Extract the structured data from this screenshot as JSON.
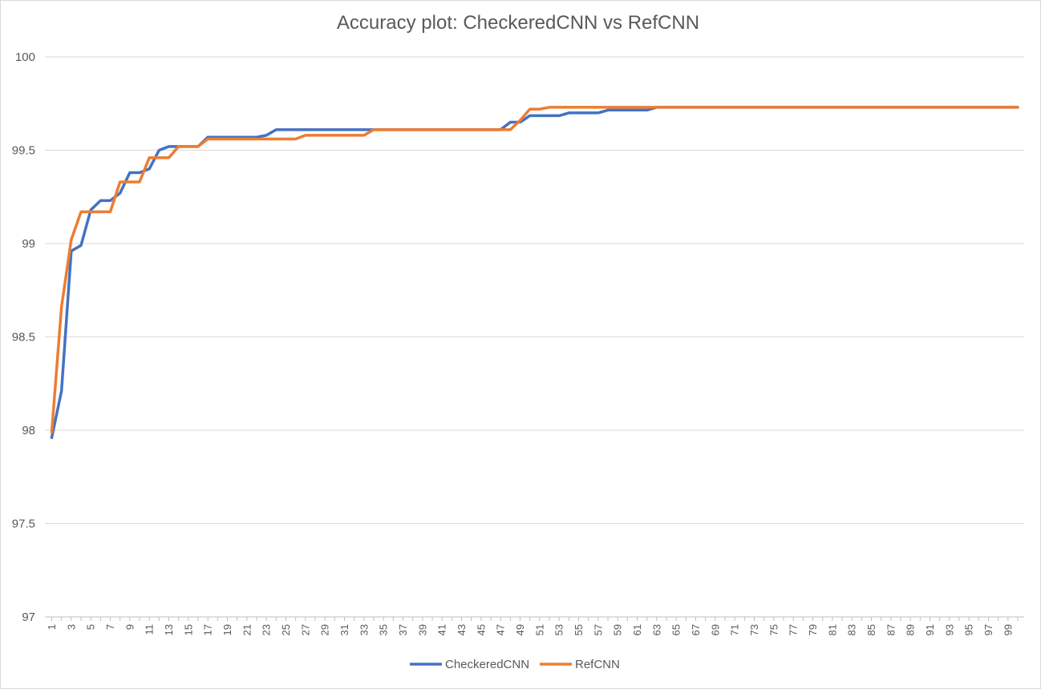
{
  "chart_data": {
    "type": "line",
    "title": "Accuracy plot: CheckeredCNN vs RefCNN",
    "xlabel": "",
    "ylabel": "",
    "x": [
      1,
      2,
      3,
      4,
      5,
      6,
      7,
      8,
      9,
      10,
      11,
      12,
      13,
      14,
      15,
      16,
      17,
      18,
      19,
      20,
      21,
      22,
      23,
      24,
      25,
      26,
      27,
      28,
      29,
      30,
      31,
      32,
      33,
      34,
      35,
      36,
      37,
      38,
      39,
      40,
      41,
      42,
      43,
      44,
      45,
      46,
      47,
      48,
      49,
      50,
      51,
      52,
      53,
      54,
      55,
      56,
      57,
      58,
      59,
      60,
      61,
      62,
      63,
      64,
      65,
      66,
      67,
      68,
      69,
      70,
      71,
      72,
      73,
      74,
      75,
      76,
      77,
      78,
      79,
      80,
      81,
      82,
      83,
      84,
      85,
      86,
      87,
      88,
      89,
      90,
      91,
      92,
      93,
      94,
      95,
      96,
      97,
      98,
      99,
      100
    ],
    "x_tick_labels": [
      "1",
      "3",
      "5",
      "7",
      "9",
      "11",
      "13",
      "15",
      "17",
      "19",
      "21",
      "23",
      "25",
      "27",
      "29",
      "31",
      "33",
      "35",
      "37",
      "39",
      "41",
      "43",
      "45",
      "47",
      "49",
      "51",
      "53",
      "55",
      "57",
      "59",
      "61",
      "63",
      "65",
      "67",
      "69",
      "71",
      "73",
      "75",
      "77",
      "79",
      "81",
      "83",
      "85",
      "87",
      "89",
      "91",
      "93",
      "95",
      "97",
      "99"
    ],
    "y_tick_labels": [
      "97",
      "97.5",
      "98",
      "98.5",
      "99",
      "99.5",
      "100"
    ],
    "ylim": [
      97,
      100
    ],
    "grid": true,
    "legend_position": "bottom",
    "series": [
      {
        "name": "CheckeredCNN",
        "color": "#4472C4",
        "values": [
          97.96,
          98.21,
          98.96,
          98.99,
          99.18,
          99.23,
          99.23,
          99.27,
          99.38,
          99.38,
          99.4,
          99.5,
          99.52,
          99.52,
          99.52,
          99.52,
          99.57,
          99.57,
          99.57,
          99.57,
          99.57,
          99.57,
          99.58,
          99.61,
          99.61,
          99.61,
          99.61,
          99.61,
          99.61,
          99.61,
          99.61,
          99.61,
          99.61,
          99.61,
          99.61,
          99.61,
          99.61,
          99.61,
          99.61,
          99.61,
          99.61,
          99.61,
          99.61,
          99.61,
          99.61,
          99.61,
          99.61,
          99.65,
          99.65,
          99.685,
          99.685,
          99.685,
          99.685,
          99.7,
          99.7,
          99.7,
          99.7,
          99.715,
          99.715,
          99.715,
          99.715,
          99.715,
          99.73,
          99.73,
          99.73,
          99.73,
          99.73,
          99.73,
          99.73,
          99.73,
          99.73,
          99.73,
          99.73,
          99.73,
          99.73,
          99.73,
          99.73,
          99.73,
          99.73,
          99.73,
          99.73,
          99.73,
          99.73,
          99.73,
          99.73,
          99.73,
          99.73,
          99.73,
          99.73,
          99.73,
          99.73,
          99.73,
          99.73,
          99.73,
          99.73,
          99.73,
          99.73,
          99.73,
          99.73,
          99.73
        ]
      },
      {
        "name": "RefCNN",
        "color": "#ED7D31",
        "values": [
          97.99,
          98.66,
          99.02,
          99.17,
          99.17,
          99.17,
          99.17,
          99.33,
          99.33,
          99.33,
          99.46,
          99.46,
          99.46,
          99.52,
          99.52,
          99.52,
          99.56,
          99.56,
          99.56,
          99.56,
          99.56,
          99.56,
          99.56,
          99.56,
          99.56,
          99.56,
          99.58,
          99.58,
          99.58,
          99.58,
          99.58,
          99.58,
          99.58,
          99.61,
          99.61,
          99.61,
          99.61,
          99.61,
          99.61,
          99.61,
          99.61,
          99.61,
          99.61,
          99.61,
          99.61,
          99.61,
          99.61,
          99.61,
          99.66,
          99.72,
          99.72,
          99.73,
          99.73,
          99.73,
          99.73,
          99.73,
          99.73,
          99.73,
          99.73,
          99.73,
          99.73,
          99.73,
          99.73,
          99.73,
          99.73,
          99.73,
          99.73,
          99.73,
          99.73,
          99.73,
          99.73,
          99.73,
          99.73,
          99.73,
          99.73,
          99.73,
          99.73,
          99.73,
          99.73,
          99.73,
          99.73,
          99.73,
          99.73,
          99.73,
          99.73,
          99.73,
          99.73,
          99.73,
          99.73,
          99.73,
          99.73,
          99.73,
          99.73,
          99.73,
          99.73,
          99.73,
          99.73,
          99.73,
          99.73,
          99.73
        ]
      }
    ]
  }
}
